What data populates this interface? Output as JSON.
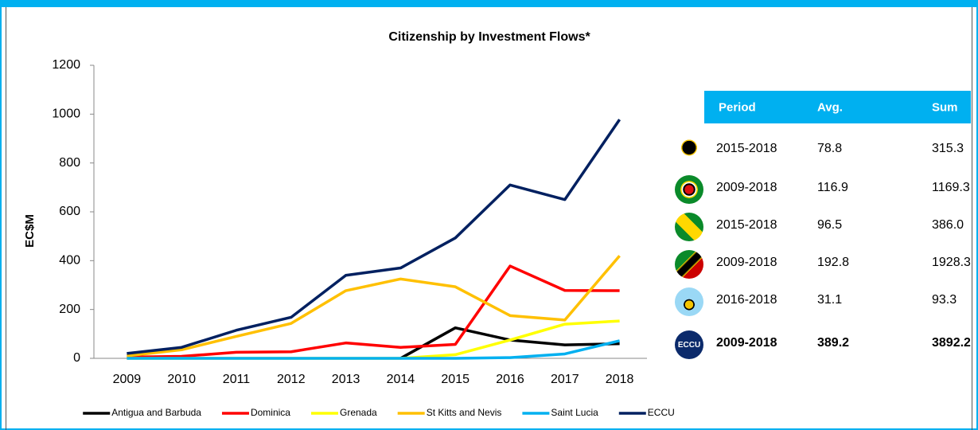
{
  "chart_data": {
    "type": "line",
    "title": "Citizenship by Investment Flows*",
    "y_label": "EC$M",
    "categories": [
      "2009",
      "2010",
      "2011",
      "2012",
      "2013",
      "2014",
      "2015",
      "2016",
      "2017",
      "2018"
    ],
    "series": [
      {
        "name": "Antigua and Barbuda",
        "color": "#000000",
        "values": [
          null,
          null,
          null,
          null,
          null,
          0,
          125,
          75,
          55,
          60
        ]
      },
      {
        "name": "Dominica",
        "color": "#ff0000",
        "values": [
          5,
          8,
          25,
          27,
          63,
          45,
          57,
          378,
          278,
          277
        ]
      },
      {
        "name": "Grenada",
        "color": "#ffff00",
        "values": [
          0,
          0,
          0,
          0,
          0,
          0,
          15,
          75,
          140,
          153
        ]
      },
      {
        "name": "St Kitts and Nevis",
        "color": "#ffc000",
        "values": [
          10,
          35,
          90,
          143,
          277,
          325,
          293,
          175,
          157,
          420
        ]
      },
      {
        "name": "Saint Lucia",
        "color": "#00b0f0",
        "values": [
          0,
          0,
          0,
          0,
          0,
          0,
          0,
          3,
          18,
          72
        ]
      },
      {
        "name": "ECCU",
        "color": "#002060",
        "values": [
          20,
          45,
          115,
          168,
          340,
          370,
          493,
          710,
          650,
          978
        ]
      }
    ],
    "ylim": [
      0,
      1200
    ],
    "yticks": [
      0,
      200,
      400,
      600,
      800,
      1000,
      1200
    ],
    "legend": "bottom"
  },
  "table": {
    "header": [
      "Period",
      "Avg.",
      "Sum"
    ],
    "rows": [
      [
        "2015-2018",
        "78.8",
        "315.3"
      ],
      [
        "2009-2018",
        "116.9",
        "1169.3"
      ],
      [
        "2015-2018",
        "96.5",
        "386.0"
      ],
      [
        "2009-2018",
        "192.8",
        "1928.3"
      ],
      [
        "2016-2018",
        "31.1",
        "93.3"
      ],
      [
        "2009-2018",
        "389.2",
        "3892.2"
      ]
    ],
    "badge": "ECCU"
  }
}
